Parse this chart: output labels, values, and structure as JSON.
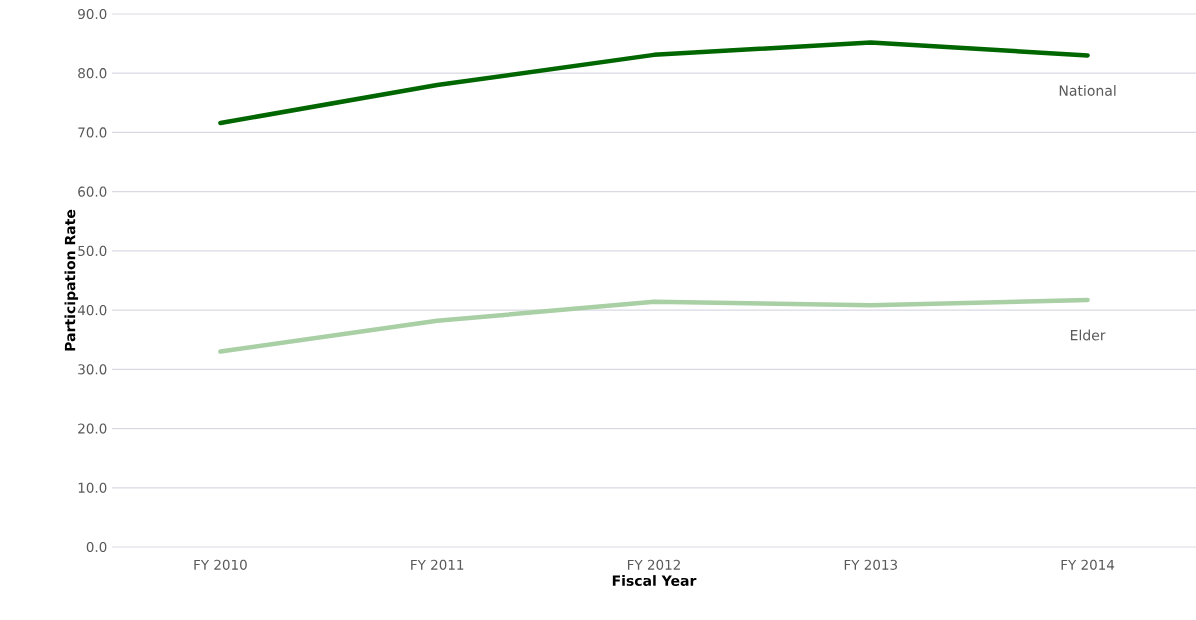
{
  "chart_data": {
    "type": "line",
    "xlabel": "Fiscal Year",
    "ylabel": "Participation Rate",
    "categories": [
      "FY 2010",
      "FY 2011",
      "FY 2012",
      "FY 2013",
      "FY 2014"
    ],
    "series": [
      {
        "name": "National",
        "color": "#006600",
        "values": [
          71.6,
          78.0,
          83.1,
          85.2,
          83.0
        ]
      },
      {
        "name": "Elder",
        "color": "#a9cfa5",
        "values": [
          33.0,
          38.2,
          41.4,
          40.8,
          41.7
        ]
      }
    ],
    "ylim": [
      0,
      90
    ],
    "yticks": [
      {
        "value": 0,
        "label": "0.0"
      },
      {
        "value": 10,
        "label": "10.0"
      },
      {
        "value": 20,
        "label": "20.0"
      },
      {
        "value": 30,
        "label": "30.0"
      },
      {
        "value": 40,
        "label": "40.0"
      },
      {
        "value": 50,
        "label": "50.0"
      },
      {
        "value": 60,
        "label": "60.0"
      },
      {
        "value": 70,
        "label": "70.0"
      },
      {
        "value": 80,
        "label": "80.0"
      },
      {
        "value": 90,
        "label": "90.0"
      }
    ],
    "grid": "y"
  }
}
